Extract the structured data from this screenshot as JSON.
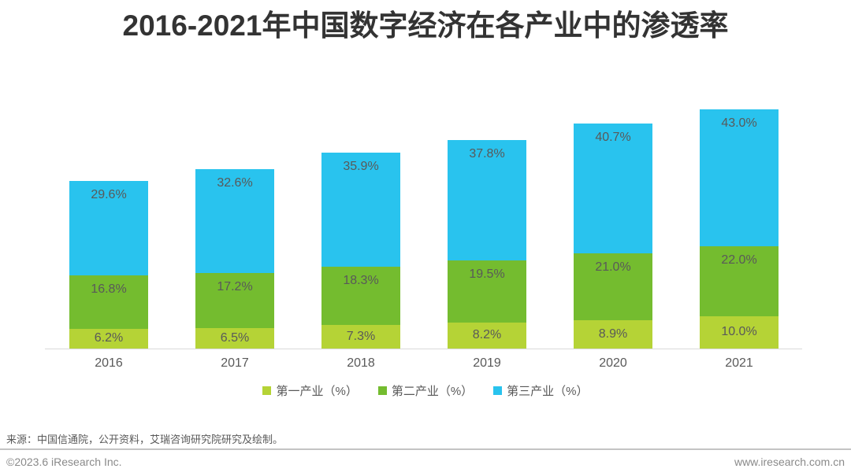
{
  "title": "2016-2021年中国数字经济在各产业中的渗透率",
  "chart_data": {
    "type": "bar",
    "stacked": true,
    "title": "2016-2021年中国数字经济在各产业中的渗透率",
    "categories": [
      "2016",
      "2017",
      "2018",
      "2019",
      "2020",
      "2021"
    ],
    "series": [
      {
        "name": "第一产业（%）",
        "color": "#b5d336",
        "values": [
          6.2,
          6.5,
          7.3,
          8.2,
          8.9,
          10.0
        ]
      },
      {
        "name": "第二产业（%）",
        "color": "#74bc2f",
        "values": [
          16.8,
          17.2,
          18.3,
          19.5,
          21.0,
          22.0
        ]
      },
      {
        "name": "第三产业（%）",
        "color": "#29c3ee",
        "values": [
          29.6,
          32.6,
          35.9,
          37.8,
          40.7,
          43.0
        ]
      }
    ],
    "value_suffix": "%",
    "value_label_color": "#595959",
    "axis_label_color": "#595959",
    "baseline_color": "#d9d9d9",
    "legend_position": "bottom",
    "grid": false,
    "ylim": [
      0,
      75
    ]
  },
  "footer": {
    "source": "来源：中国信通院，公开资料，艾瑞咨询研究院研究及绘制。",
    "copyright": "©2023.6 iResearch Inc.",
    "website": "www.iresearch.com.cn"
  }
}
